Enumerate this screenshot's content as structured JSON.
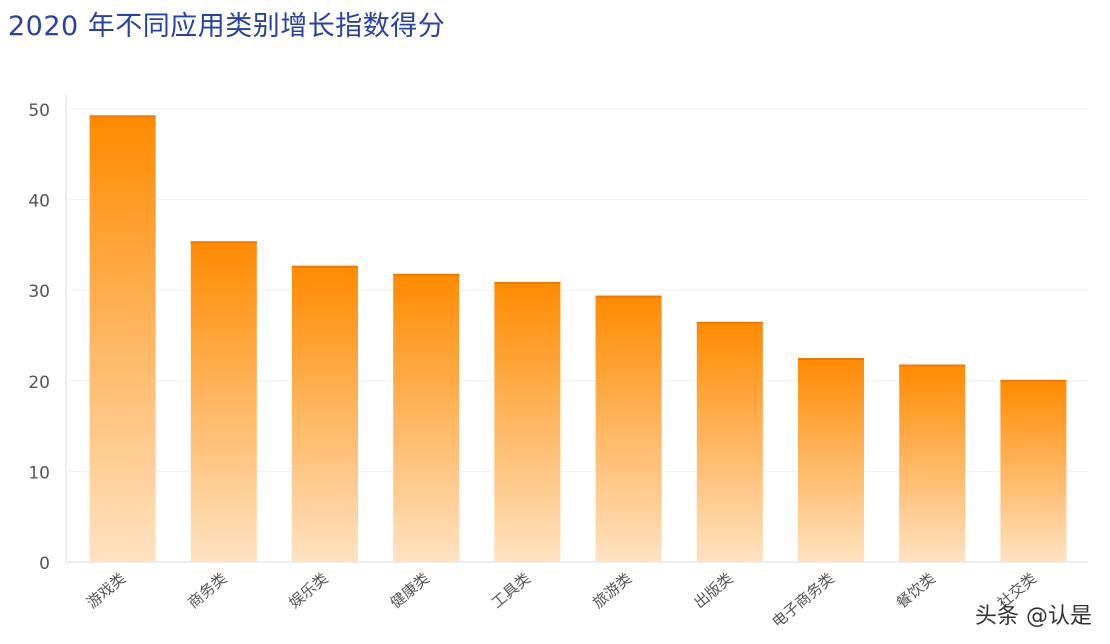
{
  "watermark": "头条 @认是",
  "colors": {
    "bar_top": "#ff8a00",
    "bar_bottom": "#ffe2c2",
    "title": "#2741a8",
    "axis_text": "#555555",
    "grid": "#eef0f4"
  },
  "chart_data": {
    "type": "bar",
    "title": "2020 年不同应用类别增长指数得分",
    "xlabel": "",
    "ylabel": "",
    "ylim": [
      0,
      50
    ],
    "yticks": [
      0,
      10,
      20,
      30,
      40,
      50
    ],
    "grid": true,
    "categories": [
      "游戏类",
      "商务类",
      "娱乐类",
      "健康类",
      "工具类",
      "旅游类",
      "出版类",
      "电子商务类",
      "餐饮类",
      "社交类"
    ],
    "values": [
      49.3,
      35.4,
      32.7,
      31.8,
      30.9,
      29.4,
      26.5,
      22.5,
      21.8,
      20.1
    ]
  }
}
